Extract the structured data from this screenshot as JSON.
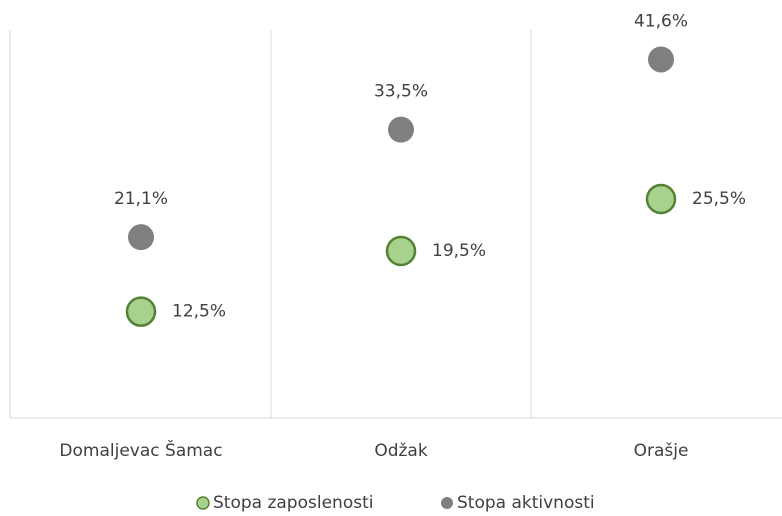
{
  "chart_data": {
    "type": "dot",
    "categories": [
      "Domaljevac Šamac",
      "Odžak",
      "Orašje"
    ],
    "series": [
      {
        "name": "Stopa zaposlenosti",
        "color": "#a9d18e",
        "edge": "#548235",
        "values": [
          12.5,
          19.5,
          25.5
        ],
        "value_labels": [
          "12,5%",
          "19,5%",
          "25,5%"
        ]
      },
      {
        "name": "Stopa aktivnosti",
        "color": "#7f7f7f",
        "values": [
          21.1,
          33.5,
          41.6
        ],
        "value_labels": [
          "21,1%",
          "33,5%",
          "41,6%"
        ]
      }
    ],
    "ylim": [
      0,
      45
    ]
  }
}
